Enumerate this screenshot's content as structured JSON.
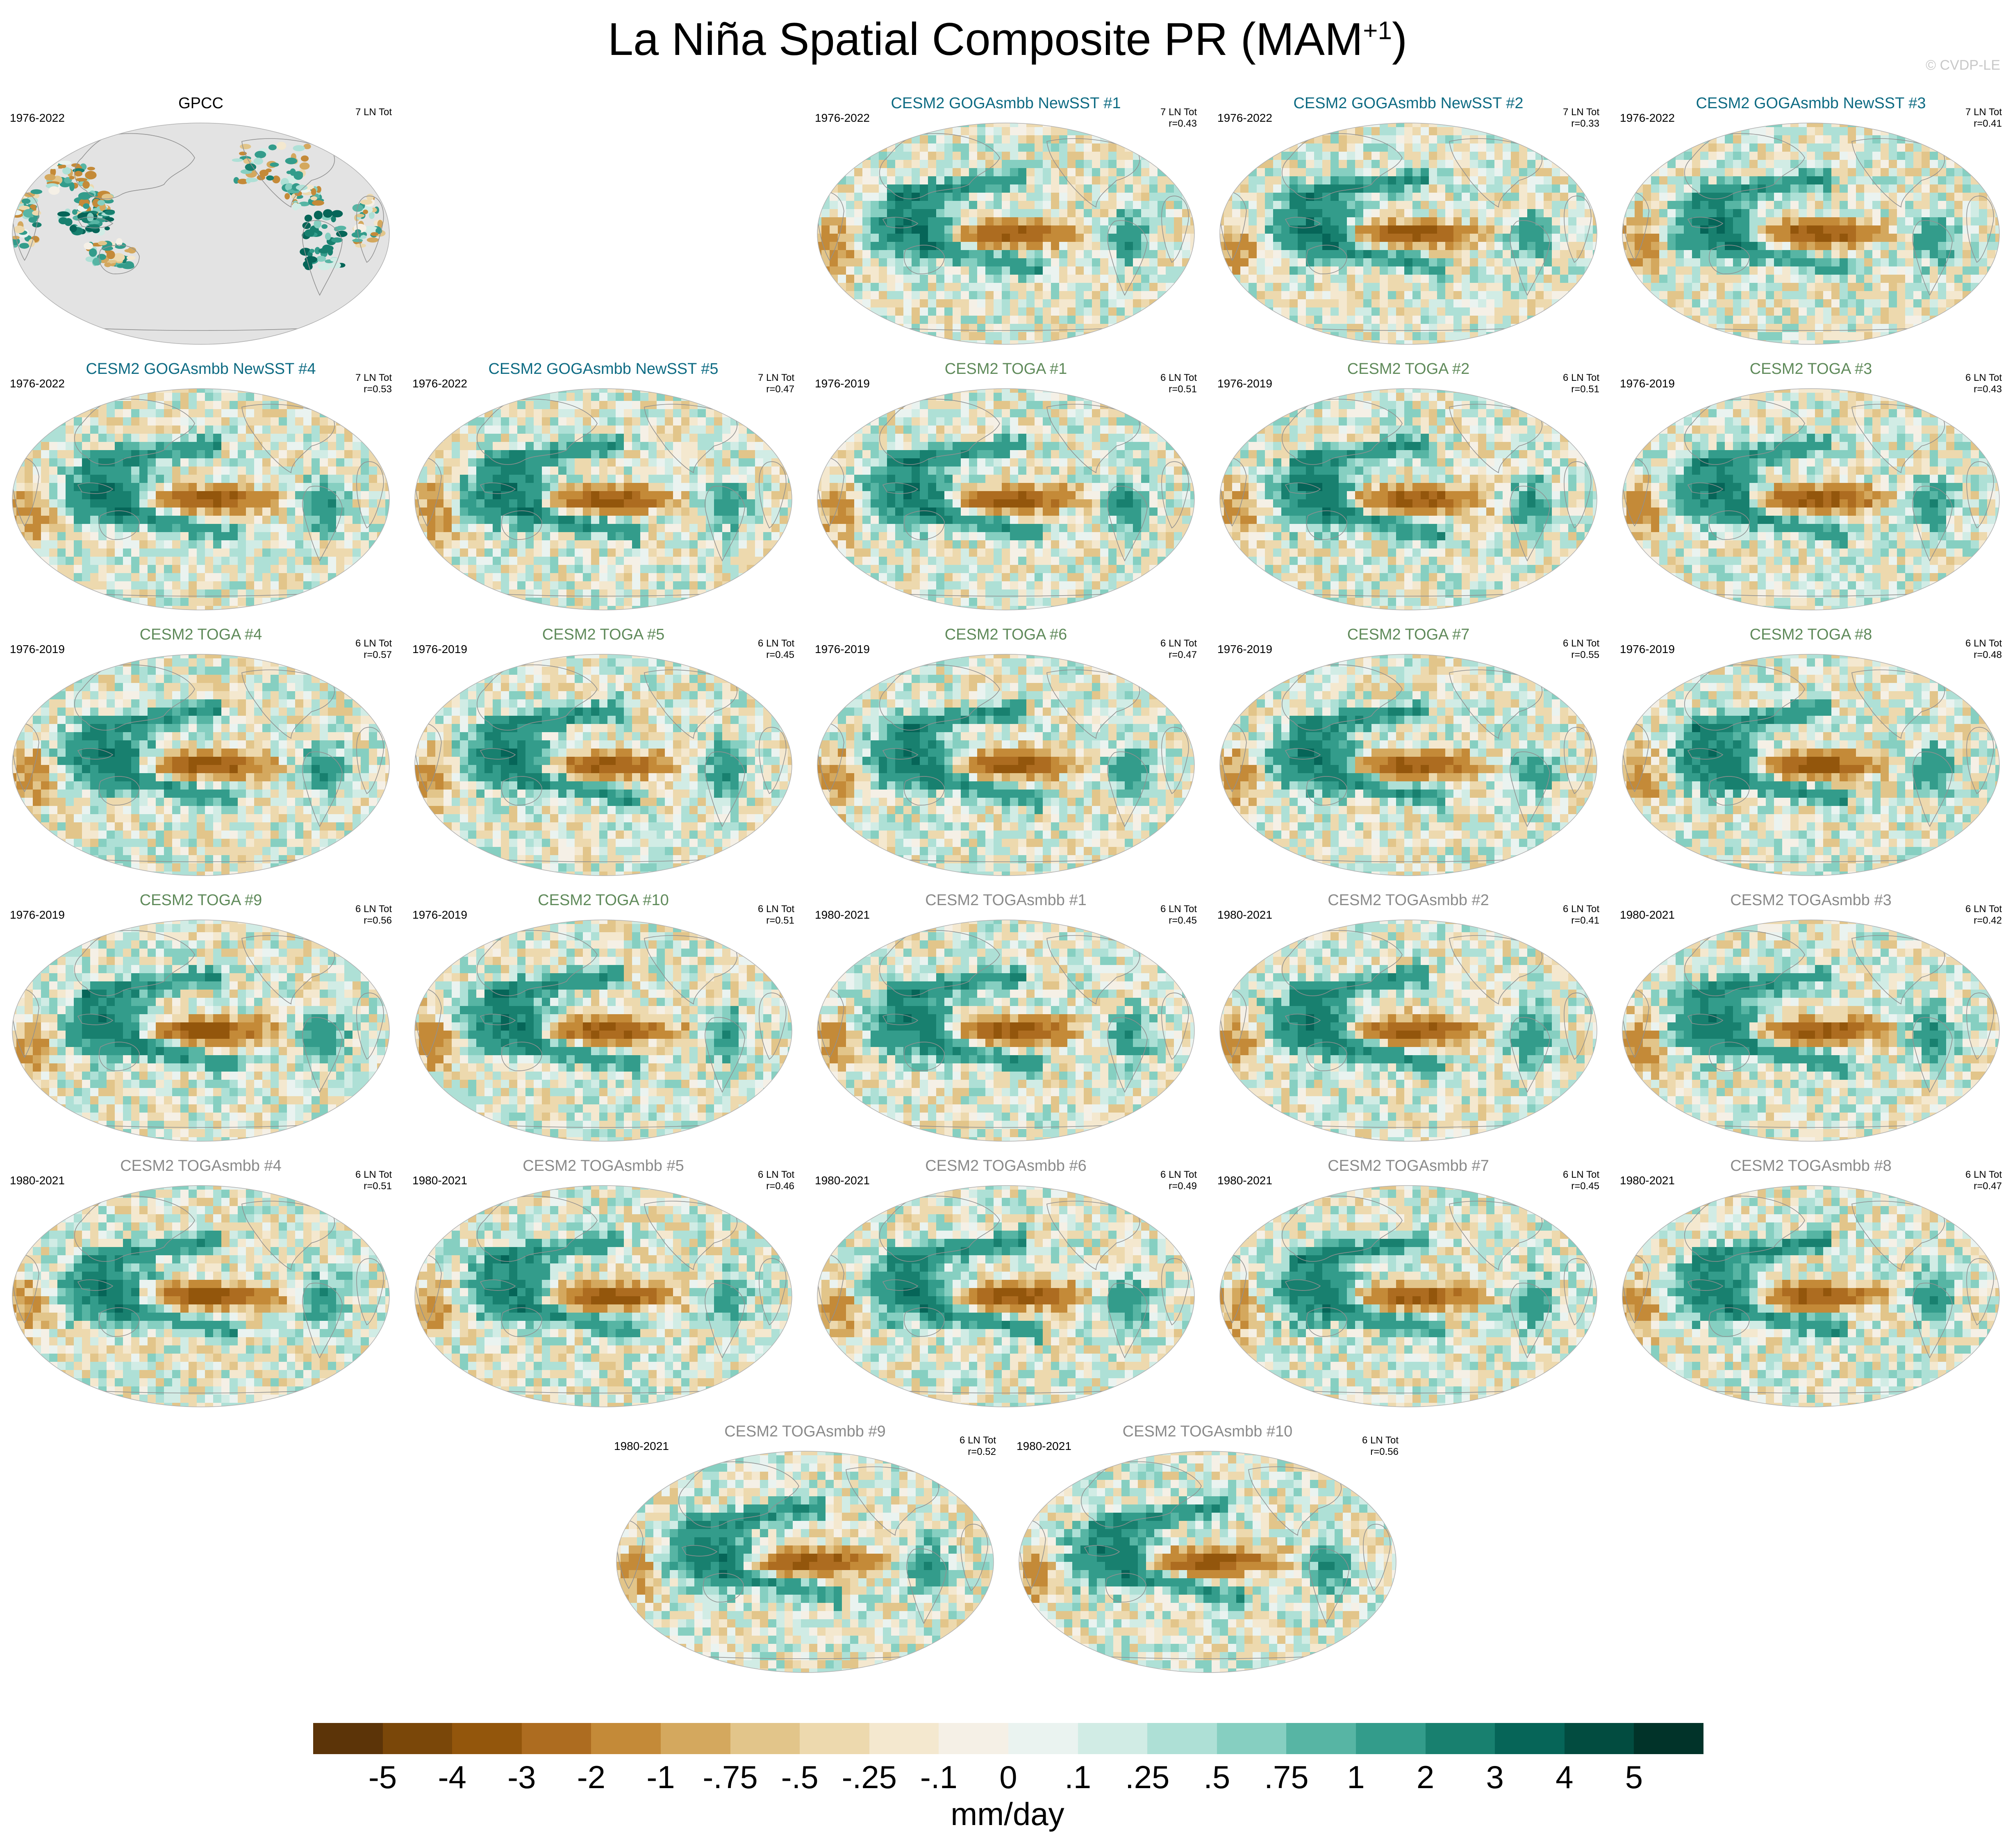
{
  "title_main": "La Niña Spatial Composite PR (MAM",
  "title_sup": "+1",
  "title_end": ")",
  "credit": "© CVDP-LE",
  "colors": {
    "gogass": "#0e6b83",
    "toga": "#5f8a5a",
    "togasmbb": "#8a8a8a",
    "obs": "#000000",
    "land_obs": "#e3e3e3",
    "border": "#909090"
  },
  "chart_data": {
    "type": "heatmap",
    "variable": "PR",
    "units": "mm/day",
    "projection": "global map (Robinson-like), Pacific-centered",
    "panels": [
      {
        "title": "GPCC",
        "group": "obs",
        "years": "1976-2022",
        "ln": "7 LN Tot",
        "r": ""
      },
      {
        "title": "CESM2 GOGAsmbb NewSST #1",
        "group": "gogass",
        "years": "1976-2022",
        "ln": "7 LN Tot",
        "r": "r=0.43"
      },
      {
        "title": "CESM2 GOGAsmbb NewSST #2",
        "group": "gogass",
        "years": "1976-2022",
        "ln": "7 LN Tot",
        "r": "r=0.33"
      },
      {
        "title": "CESM2 GOGAsmbb NewSST #3",
        "group": "gogass",
        "years": "1976-2022",
        "ln": "7 LN Tot",
        "r": "r=0.41"
      },
      {
        "title": "CESM2 GOGAsmbb NewSST #4",
        "group": "gogass",
        "years": "1976-2022",
        "ln": "7 LN Tot",
        "r": "r=0.53"
      },
      {
        "title": "CESM2 GOGAsmbb NewSST #5",
        "group": "gogass",
        "years": "1976-2022",
        "ln": "7 LN Tot",
        "r": "r=0.47"
      },
      {
        "title": "CESM2 TOGA #1",
        "group": "toga",
        "years": "1976-2019",
        "ln": "6 LN Tot",
        "r": "r=0.51"
      },
      {
        "title": "CESM2 TOGA #2",
        "group": "toga",
        "years": "1976-2019",
        "ln": "6 LN Tot",
        "r": "r=0.51"
      },
      {
        "title": "CESM2 TOGA #3",
        "group": "toga",
        "years": "1976-2019",
        "ln": "6 LN Tot",
        "r": "r=0.43"
      },
      {
        "title": "CESM2 TOGA #4",
        "group": "toga",
        "years": "1976-2019",
        "ln": "6 LN Tot",
        "r": "r=0.57"
      },
      {
        "title": "CESM2 TOGA #5",
        "group": "toga",
        "years": "1976-2019",
        "ln": "6 LN Tot",
        "r": "r=0.45"
      },
      {
        "title": "CESM2 TOGA #6",
        "group": "toga",
        "years": "1976-2019",
        "ln": "6 LN Tot",
        "r": "r=0.47"
      },
      {
        "title": "CESM2 TOGA #7",
        "group": "toga",
        "years": "1976-2019",
        "ln": "6 LN Tot",
        "r": "r=0.55"
      },
      {
        "title": "CESM2 TOGA #8",
        "group": "toga",
        "years": "1976-2019",
        "ln": "6 LN Tot",
        "r": "r=0.48"
      },
      {
        "title": "CESM2 TOGA #9",
        "group": "toga",
        "years": "1976-2019",
        "ln": "6 LN Tot",
        "r": "r=0.56"
      },
      {
        "title": "CESM2 TOGA #10",
        "group": "toga",
        "years": "1976-2019",
        "ln": "6 LN Tot",
        "r": "r=0.51"
      },
      {
        "title": "CESM2 TOGAsmbb #1",
        "group": "togasmbb",
        "years": "1980-2021",
        "ln": "6 LN Tot",
        "r": "r=0.45"
      },
      {
        "title": "CESM2 TOGAsmbb #2",
        "group": "togasmbb",
        "years": "1980-2021",
        "ln": "6 LN Tot",
        "r": "r=0.41"
      },
      {
        "title": "CESM2 TOGAsmbb #3",
        "group": "togasmbb",
        "years": "1980-2021",
        "ln": "6 LN Tot",
        "r": "r=0.42"
      },
      {
        "title": "CESM2 TOGAsmbb #4",
        "group": "togasmbb",
        "years": "1980-2021",
        "ln": "6 LN Tot",
        "r": "r=0.51"
      },
      {
        "title": "CESM2 TOGAsmbb #5",
        "group": "togasmbb",
        "years": "1980-2021",
        "ln": "6 LN Tot",
        "r": "r=0.46"
      },
      {
        "title": "CESM2 TOGAsmbb #6",
        "group": "togasmbb",
        "years": "1980-2021",
        "ln": "6 LN Tot",
        "r": "r=0.49"
      },
      {
        "title": "CESM2 TOGAsmbb #7",
        "group": "togasmbb",
        "years": "1980-2021",
        "ln": "6 LN Tot",
        "r": "r=0.45"
      },
      {
        "title": "CESM2 TOGAsmbb #8",
        "group": "togasmbb",
        "years": "1980-2021",
        "ln": "6 LN Tot",
        "r": "r=0.47"
      },
      {
        "title": "CESM2 TOGAsmbb #9",
        "group": "togasmbb",
        "years": "1980-2021",
        "ln": "6 LN Tot",
        "r": "r=0.52"
      },
      {
        "title": "CESM2 TOGAsmbb #10",
        "group": "togasmbb",
        "years": "1980-2021",
        "ln": "6 LN Tot",
        "r": "r=0.56"
      }
    ],
    "colorbar": {
      "levels": [
        "-5",
        "-4",
        "-3",
        "-2",
        "-1",
        "-.75",
        "-.5",
        "-.25",
        "-.1",
        "0",
        ".1",
        ".25",
        ".5",
        ".75",
        "1",
        "2",
        "3",
        "4",
        "5"
      ],
      "colors": [
        "#5c3408",
        "#7a4709",
        "#93560c",
        "#ad6c20",
        "#c48a38",
        "#d4a85e",
        "#e2c58a",
        "#edd9ae",
        "#f4e8cf",
        "#f5f0e6",
        "#eaf3f0",
        "#d1ece5",
        "#aee0d6",
        "#86cfc1",
        "#57b5a4",
        "#339c8b",
        "#18806f",
        "#066558",
        "#024c40",
        "#013329"
      ],
      "label": "mm/day"
    }
  }
}
